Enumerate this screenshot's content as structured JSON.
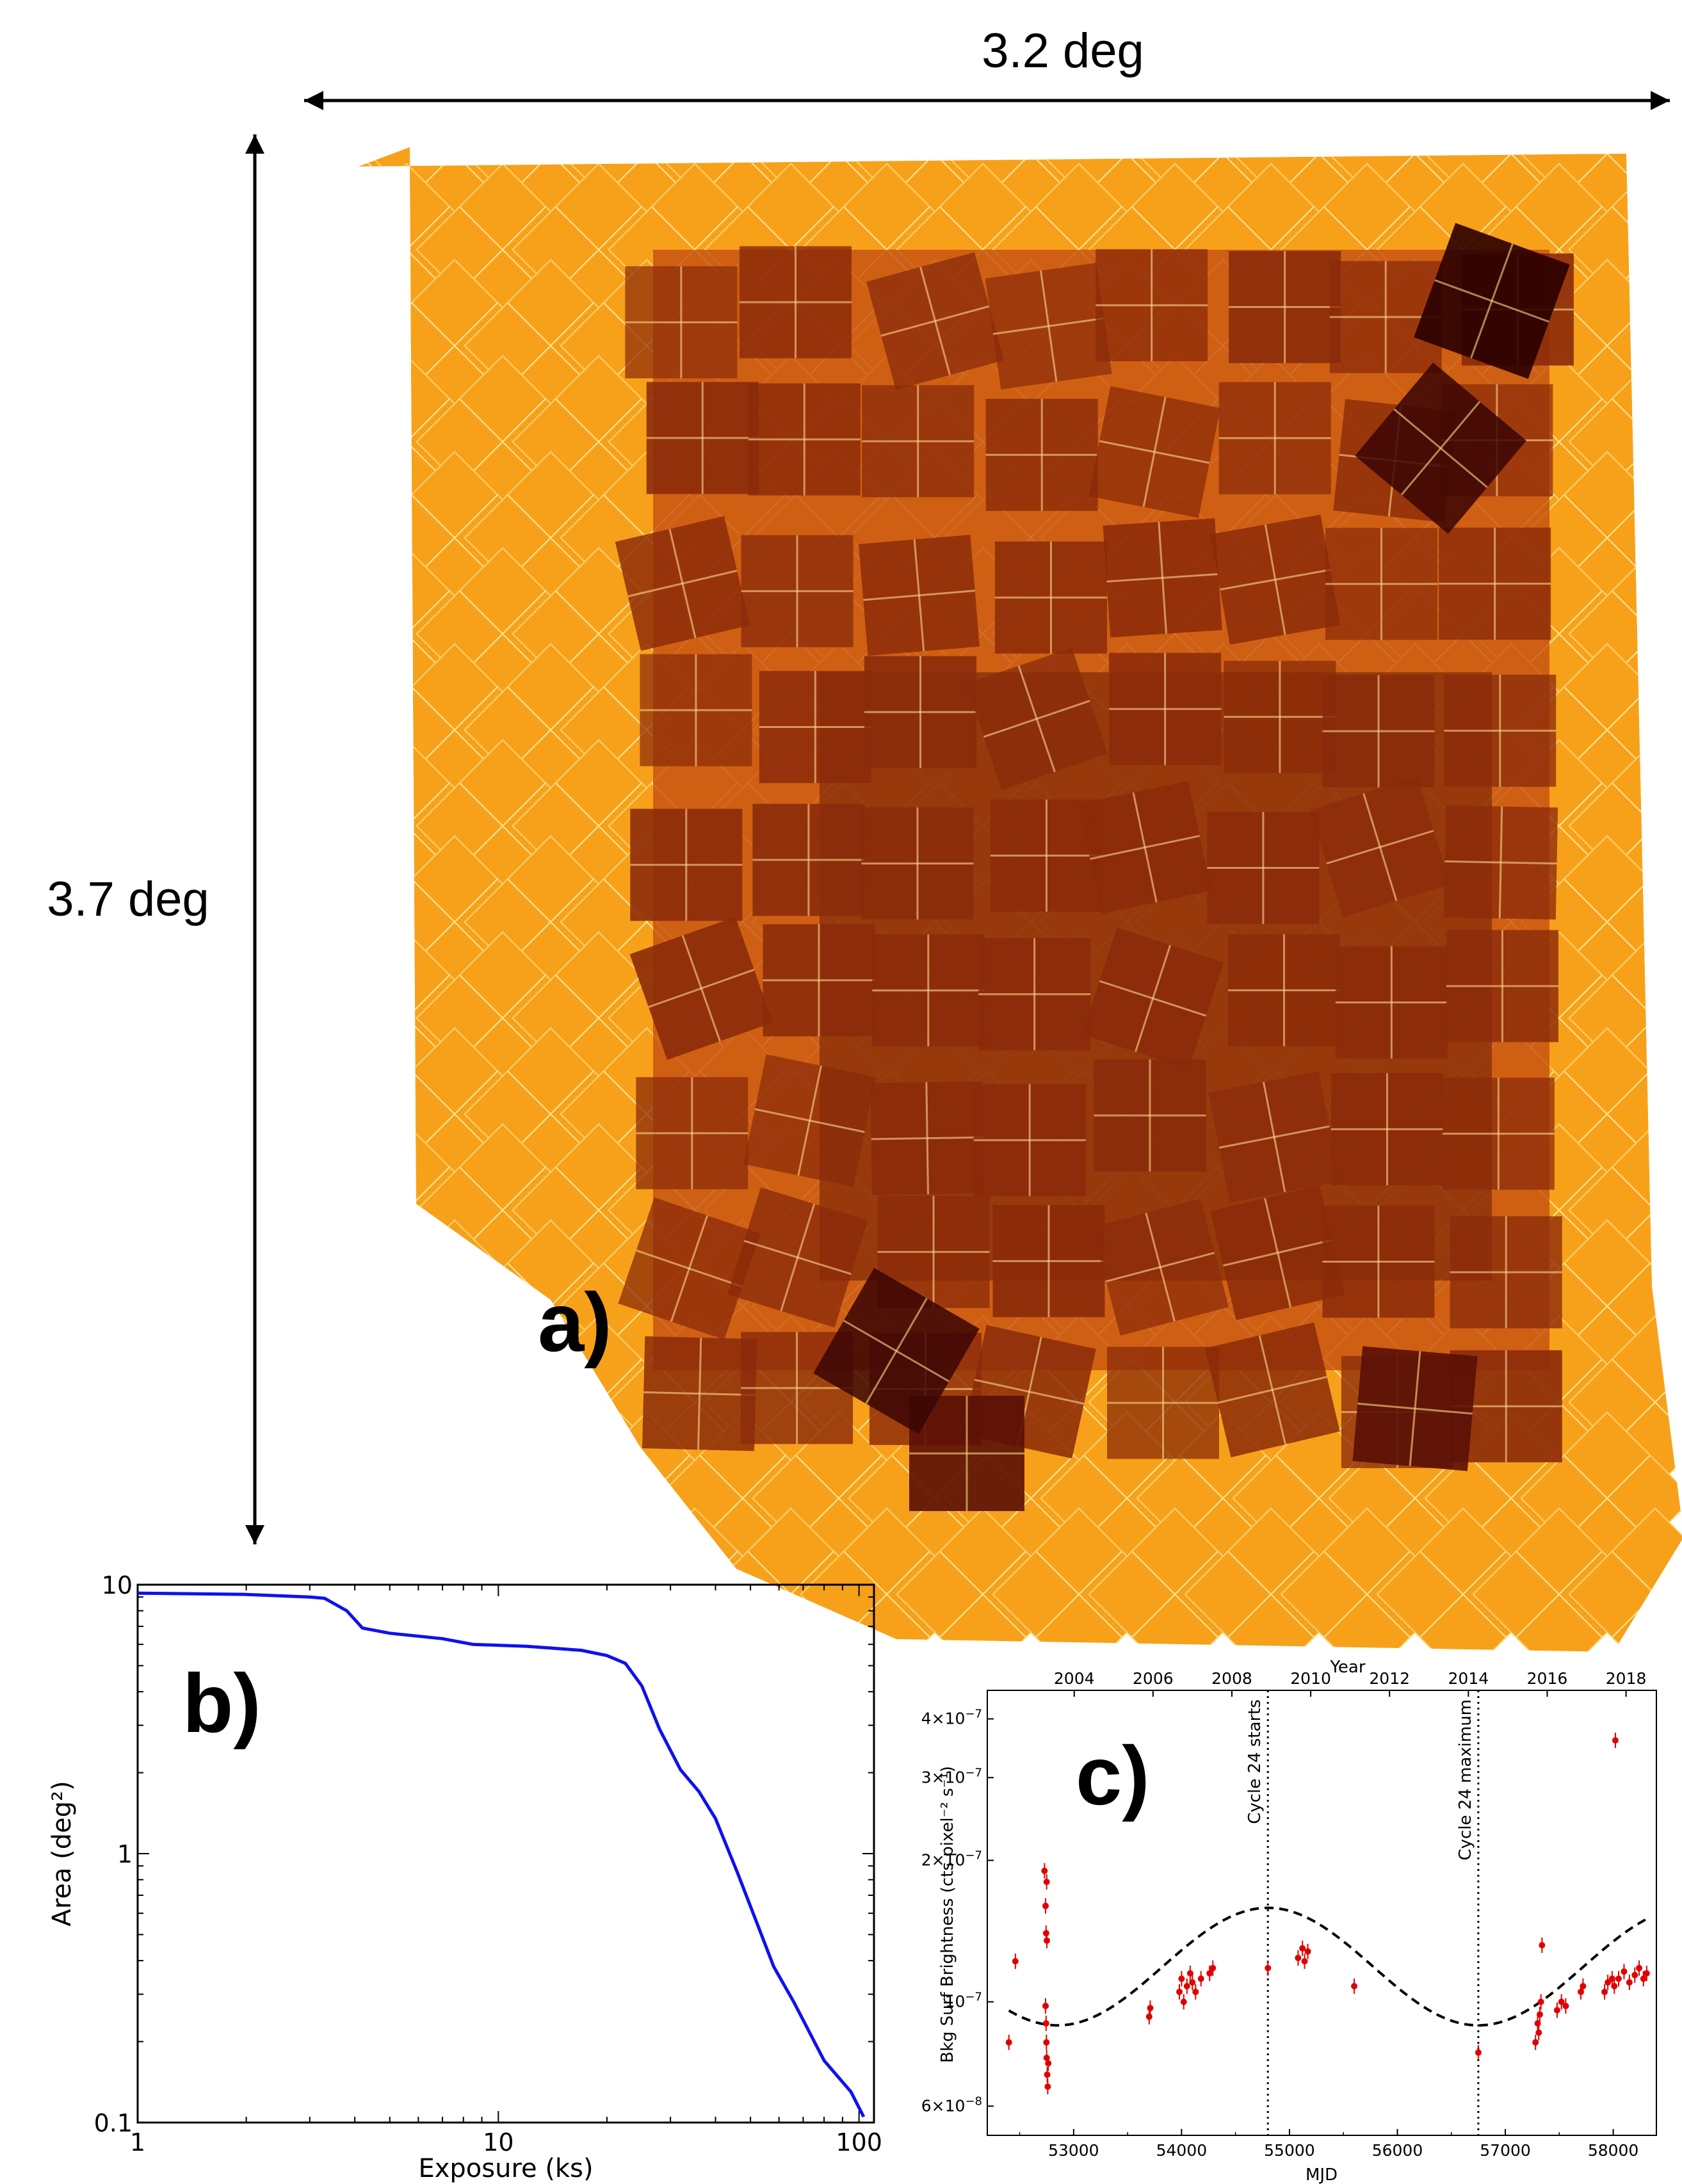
{
  "figure": {
    "panel_a": {
      "label": "a)",
      "width_label": "3.2 deg",
      "height_label": "3.7 deg",
      "colors": {
        "background": "#ffffff",
        "single_coverage": "#f7a11a",
        "overlap": "#8a2a0a",
        "deep": "#2a0000"
      }
    },
    "panel_b": {
      "label": "b)"
    },
    "panel_c": {
      "label": "c)"
    }
  },
  "chart_data": [
    {
      "type": "line",
      "panel": "b)",
      "xlabel": "Exposure (ks)",
      "ylabel": "Area (deg²)",
      "xscale": "log",
      "yscale": "log",
      "xlim": [
        1,
        110
      ],
      "ylim": [
        0.1,
        10
      ],
      "xticks": [
        "1",
        "10",
        "100"
      ],
      "yticks": [
        "0.1",
        "1",
        "10"
      ],
      "color": "#1010ee",
      "series": [
        {
          "x": [
            1,
            2,
            3,
            3.3,
            3.8,
            4.2,
            5,
            7,
            8.5,
            12,
            17,
            20,
            22.5,
            25,
            28,
            32,
            36,
            40,
            46,
            53,
            58,
            66,
            80,
            95,
            103
          ],
          "y": [
            9.3,
            9.2,
            9.0,
            8.9,
            8.0,
            6.9,
            6.6,
            6.3,
            6.0,
            5.9,
            5.7,
            5.45,
            5.1,
            4.2,
            2.9,
            2.05,
            1.7,
            1.35,
            0.85,
            0.52,
            0.38,
            0.28,
            0.17,
            0.13,
            0.105
          ]
        }
      ]
    },
    {
      "type": "scatter",
      "panel": "c)",
      "xlabel": "MJD",
      "ylabel": "Bkg Surf Brightness (cts pixel⁻² s⁻¹)",
      "top_axis_label": "Year",
      "yscale": "log",
      "xlim": [
        52200,
        58400
      ],
      "ylim": [
        5.2e-08,
        4.6e-07
      ],
      "xticks": [
        "53000",
        "54000",
        "55000",
        "56000",
        "57000",
        "58000"
      ],
      "top_ticks": [
        "2004",
        "2006",
        "2008",
        "2010",
        "2012",
        "2014",
        "2016",
        "2018"
      ],
      "ytick_labels": [
        {
          "value": 6e-08,
          "mantissa": "6",
          "exp": "−8"
        },
        {
          "value": 1e-07,
          "mantissa": "",
          "exp": "−7"
        },
        {
          "value": 2e-07,
          "mantissa": "2",
          "exp": "−7"
        },
        {
          "value": 3e-07,
          "mantissa": "3",
          "exp": "−7"
        },
        {
          "value": 4e-07,
          "mantissa": "4",
          "exp": "−7"
        }
      ],
      "vlines": [
        {
          "x": 54800,
          "label": "Cycle 24 starts"
        },
        {
          "x": 56750,
          "label": "Cycle 24 maximum"
        }
      ],
      "model_curve": {
        "style": "dashed",
        "color": "#000000"
      },
      "points_color": "#e00000",
      "points": [
        [
          52400,
          8.2e-08
        ],
        [
          52460,
          1.22e-07
        ],
        [
          52730,
          1.9e-07
        ],
        [
          52740,
          1.6e-07
        ],
        [
          52745,
          1.4e-07
        ],
        [
          52750,
          1.8e-07
        ],
        [
          52752,
          1.35e-07
        ],
        [
          52740,
          9.8e-08
        ],
        [
          52745,
          9e-08
        ],
        [
          52748,
          8.2e-08
        ],
        [
          52750,
          7.6e-08
        ],
        [
          52755,
          7e-08
        ],
        [
          52760,
          6.6e-08
        ],
        [
          52765,
          7.4e-08
        ],
        [
          53700,
          9.3e-08
        ],
        [
          53710,
          9.7e-08
        ],
        [
          53980,
          1.05e-07
        ],
        [
          54000,
          1.12e-07
        ],
        [
          54020,
          1e-07
        ],
        [
          54050,
          1.08e-07
        ],
        [
          54080,
          1.15e-07
        ],
        [
          54100,
          1.1e-07
        ],
        [
          54130,
          1.05e-07
        ],
        [
          54180,
          1.12e-07
        ],
        [
          54260,
          1.15e-07
        ],
        [
          54290,
          1.18e-07
        ],
        [
          54800,
          1.18e-07
        ],
        [
          55080,
          1.24e-07
        ],
        [
          55120,
          1.3e-07
        ],
        [
          55140,
          1.22e-07
        ],
        [
          55170,
          1.28e-07
        ],
        [
          55600,
          1.08e-07
        ],
        [
          56750,
          7.8e-08
        ],
        [
          57280,
          8.2e-08
        ],
        [
          57300,
          9e-08
        ],
        [
          57310,
          8.6e-08
        ],
        [
          57320,
          9.4e-08
        ],
        [
          57330,
          1e-07
        ],
        [
          57340,
          1.32e-07
        ],
        [
          57480,
          9.6e-08
        ],
        [
          57520,
          1e-07
        ],
        [
          57560,
          9.8e-08
        ],
        [
          57700,
          1.05e-07
        ],
        [
          57720,
          1.08e-07
        ],
        [
          57920,
          1.05e-07
        ],
        [
          57950,
          1.1e-07
        ],
        [
          57990,
          1.12e-07
        ],
        [
          58010,
          1.08e-07
        ],
        [
          58020,
          3.6e-07
        ],
        [
          58050,
          1.12e-07
        ],
        [
          58100,
          1.16e-07
        ],
        [
          58150,
          1.1e-07
        ],
        [
          58200,
          1.14e-07
        ],
        [
          58240,
          1.18e-07
        ],
        [
          58280,
          1.12e-07
        ],
        [
          58310,
          1.15e-07
        ]
      ]
    }
  ]
}
